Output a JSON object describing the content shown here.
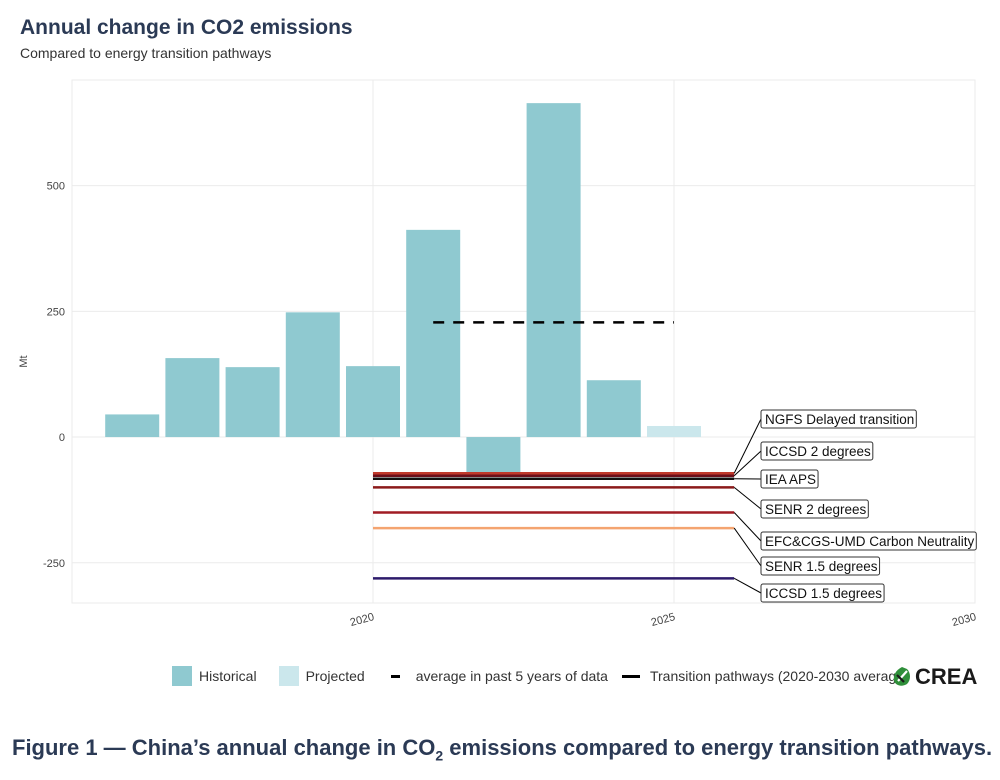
{
  "title": "Annual change in CO2 emissions",
  "subtitle": "Compared to energy transition pathways",
  "chart_data": {
    "type": "bar",
    "ylabel": "Mt",
    "xlabel": "",
    "xlim": [
      2015,
      2030
    ],
    "ylim": [
      -330,
      710
    ],
    "yticks": [
      -250,
      0,
      250,
      500
    ],
    "xticks": [
      2020,
      2025,
      2030
    ],
    "grid": true,
    "historical": {
      "name": "Historical",
      "color": "#8fc9d0",
      "x": [
        2016,
        2017,
        2018,
        2019,
        2020,
        2021,
        2022,
        2023,
        2024
      ],
      "values": [
        45,
        157,
        139,
        248,
        141,
        412,
        -70,
        664,
        113
      ]
    },
    "projected": {
      "name": "Projected",
      "color": "#cbe7ec",
      "x": [
        2025
      ],
      "values": [
        22
      ]
    },
    "average_line": {
      "name": "average in past 5 years of data",
      "x_start": 2021,
      "x_end": 2025,
      "value": 228
    },
    "pathways": [
      {
        "name": "NGFS Delayed transition",
        "value": -72,
        "color": "#c0392b"
      },
      {
        "name": "ICCSD 2 degrees",
        "value": -77,
        "color": "#6b0f1a"
      },
      {
        "name": "IEA APS",
        "value": -83,
        "color": "#111111"
      },
      {
        "name": "SENR 2 degrees",
        "value": -100,
        "color": "#8b1a1a"
      },
      {
        "name": "EFC&CGS-UMD Carbon Neutrality",
        "value": -150,
        "color": "#a01c24"
      },
      {
        "name": "SENR 1.5 degrees",
        "value": -181,
        "color": "#f4a470"
      },
      {
        "name": "ICCSD 1.5 degrees",
        "value": -281,
        "color": "#2d1b6b"
      }
    ],
    "pathway_x": [
      2020,
      2026
    ]
  },
  "legend": {
    "historical": "Historical",
    "projected": "Projected",
    "average": "average in past 5 years of data",
    "pathways": "Transition pathways (2020-2030 average)"
  },
  "brand": "CREA",
  "caption_pre": "Figure 1 — China’s annual change in CO",
  "caption_sub": "2",
  "caption_post": " emissions compared to energy transition pathways."
}
